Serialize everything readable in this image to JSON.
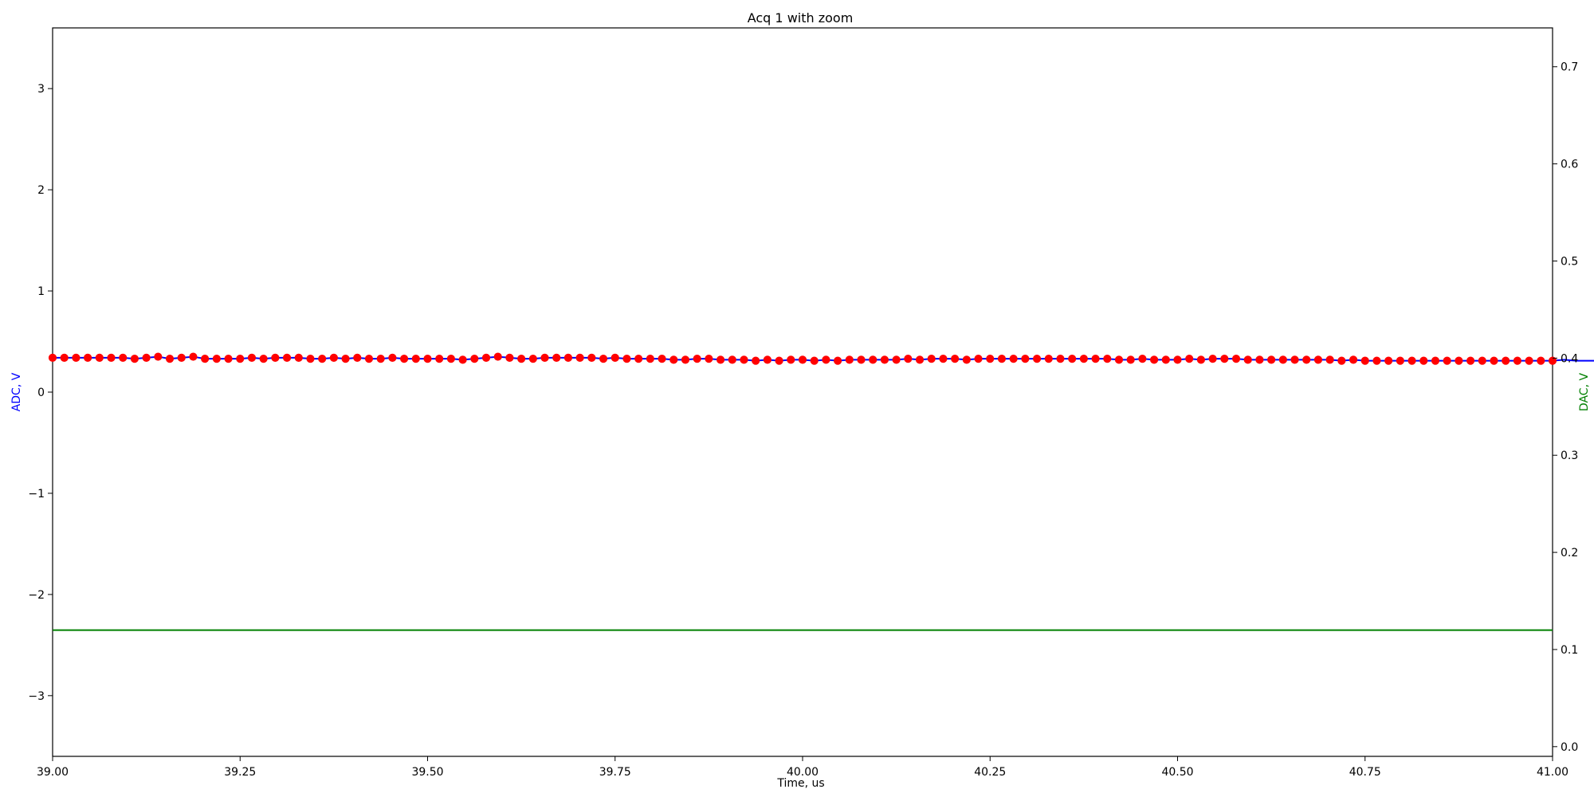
{
  "chart_data": {
    "type": "line",
    "title": "Acq 1 with zoom",
    "xlabel": "Time, us",
    "ylabel_left": "ADC, V",
    "ylabel_right": "DAC, V",
    "xlim": [
      39.0,
      41.0
    ],
    "ylim_left": [
      -3.6,
      3.6
    ],
    "ylim_right": [
      -0.01,
      0.74
    ],
    "x_ticks": [
      39.0,
      39.25,
      39.5,
      39.75,
      40.0,
      40.25,
      40.5,
      40.75,
      41.0
    ],
    "x_tick_labels": [
      "39.00",
      "39.25",
      "39.50",
      "39.75",
      "40.00",
      "40.25",
      "40.50",
      "40.75",
      "41.00"
    ],
    "y_left_ticks": [
      -3,
      -2,
      -1,
      0,
      1,
      2,
      3
    ],
    "y_left_tick_labels": [
      "−3",
      "−2",
      "−1",
      "0",
      "1",
      "2",
      "3"
    ],
    "y_right_ticks": [
      0.0,
      0.1,
      0.2,
      0.3,
      0.4,
      0.5,
      0.6,
      0.7
    ],
    "y_right_tick_labels": [
      "0.0",
      "0.1",
      "0.2",
      "0.3",
      "0.4",
      "0.5",
      "0.6",
      "0.7"
    ],
    "grid": false,
    "colors": {
      "adc_line": "#0000ff",
      "adc_marker": "#ff0000",
      "dac_line": "#008000",
      "left_label": "#0000ff",
      "right_label": "#008000"
    },
    "series": [
      {
        "axis": "left",
        "x_start": 39.0,
        "x_step": 0.015625,
        "values": [
          0.34,
          0.34,
          0.34,
          0.34,
          0.34,
          0.34,
          0.34,
          0.33,
          0.34,
          0.35,
          0.33,
          0.34,
          0.35,
          0.33,
          0.33,
          0.33,
          0.33,
          0.34,
          0.33,
          0.34,
          0.34,
          0.34,
          0.33,
          0.33,
          0.34,
          0.33,
          0.34,
          0.33,
          0.33,
          0.34,
          0.33,
          0.33,
          0.33,
          0.33,
          0.33,
          0.32,
          0.33,
          0.34,
          0.35,
          0.34,
          0.33,
          0.33,
          0.34,
          0.34,
          0.34,
          0.34,
          0.34,
          0.33,
          0.34,
          0.33,
          0.33,
          0.33,
          0.33,
          0.32,
          0.32,
          0.33,
          0.33,
          0.32,
          0.32,
          0.32,
          0.31,
          0.32,
          0.31,
          0.32,
          0.32,
          0.31,
          0.32,
          0.31,
          0.32,
          0.32,
          0.32,
          0.32,
          0.32,
          0.33,
          0.32,
          0.33,
          0.33,
          0.33,
          0.32,
          0.33,
          0.33,
          0.33,
          0.33,
          0.33,
          0.33,
          0.33,
          0.33,
          0.33,
          0.33,
          0.33,
          0.33,
          0.32,
          0.32,
          0.33,
          0.32,
          0.32,
          0.32,
          0.33,
          0.32,
          0.33,
          0.33,
          0.33,
          0.32,
          0.32,
          0.32,
          0.32,
          0.32,
          0.32,
          0.32,
          0.32,
          0.31,
          0.32,
          0.31,
          0.31,
          0.31,
          0.31,
          0.31,
          0.31,
          0.31,
          0.31,
          0.31,
          0.31,
          0.31,
          0.31,
          0.31,
          0.31,
          0.31,
          0.31,
          0.31,
          0.32,
          0.31,
          0.31,
          0.31,
          0.31,
          0.31,
          0.31,
          0.31,
          0.31,
          0.31,
          0.31,
          0.31,
          0.31,
          0.31,
          0.31,
          0.31,
          0.31
        ]
      },
      {
        "axis": "right",
        "x": [
          39.0,
          41.0
        ],
        "values": [
          0.12,
          0.12
        ]
      }
    ]
  }
}
